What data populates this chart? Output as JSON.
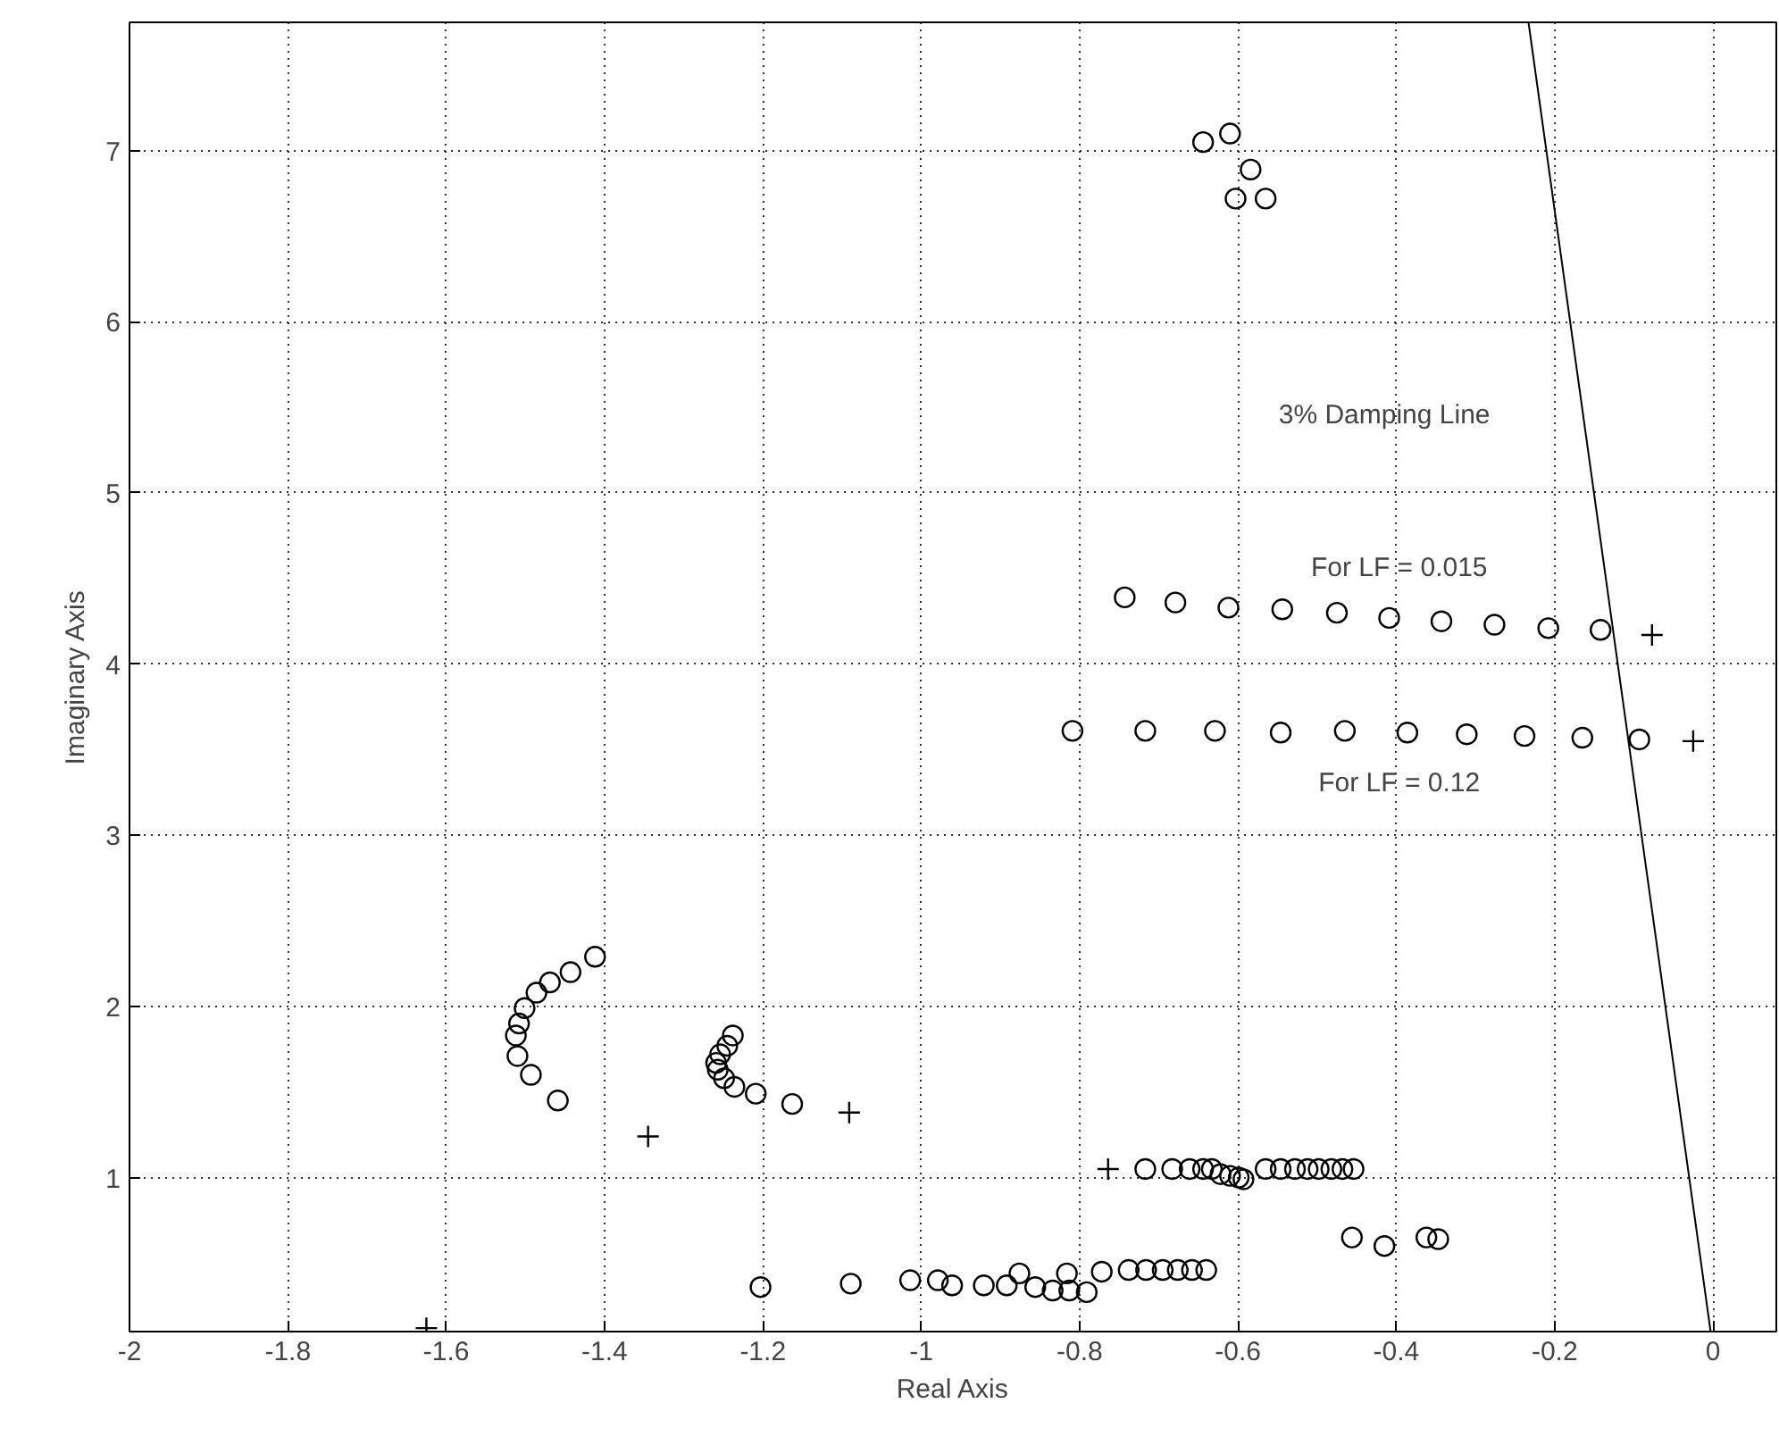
{
  "chart_data": {
    "type": "scatter",
    "xlabel": "Real Axis",
    "ylabel": "Imaginary Axis",
    "xlim": [
      -2,
      0.08
    ],
    "ylim": [
      0.1,
      7.75
    ],
    "xticks": [
      -2,
      -1.8,
      -1.6,
      -1.4,
      -1.2,
      -1,
      -0.8,
      -0.6,
      -0.4,
      -0.2,
      0
    ],
    "yticks": [
      1,
      2,
      3,
      4,
      5,
      6,
      7
    ],
    "grid": true,
    "series": [
      {
        "marker": "circle",
        "color": "#000000",
        "x": [
          -0.743,
          -0.679,
          -0.612,
          -0.544,
          -0.475,
          -0.409,
          -0.343,
          -0.276,
          -0.208,
          -0.142,
          -0.809,
          -0.717,
          -0.629,
          -0.546,
          -0.465,
          -0.386,
          -0.311,
          -0.238,
          -0.165,
          -0.093,
          -1.412,
          -1.443,
          -1.469,
          -1.486,
          -1.501,
          -1.508,
          -1.512,
          -1.51,
          -1.493,
          -1.459,
          -1.238,
          -1.245,
          -1.254,
          -1.259,
          -1.257,
          -1.249,
          -1.236,
          -1.209,
          -1.163,
          -0.717,
          -0.683,
          -0.661,
          -0.644,
          -0.633,
          -0.622,
          -0.61,
          -0.599,
          -0.593,
          -0.565,
          -0.546,
          -0.528,
          -0.512,
          -0.498,
          -0.482,
          -0.468,
          -0.454,
          -1.203,
          -1.089,
          -1.014,
          -0.979,
          -0.961,
          -0.921,
          -0.892,
          -0.876,
          -0.856,
          -0.834,
          -0.816,
          -0.813,
          -0.791,
          -0.772,
          -0.738,
          -0.716,
          -0.695,
          -0.676,
          -0.658,
          -0.64,
          -0.644,
          -0.61,
          -0.584,
          -0.603,
          -0.565,
          -0.456,
          -0.415,
          -0.362,
          -0.347
        ],
        "values": [
          4.39,
          4.36,
          4.33,
          4.32,
          4.3,
          4.27,
          4.25,
          4.23,
          4.21,
          4.2,
          3.61,
          3.61,
          3.61,
          3.6,
          3.61,
          3.6,
          3.59,
          3.58,
          3.57,
          3.56,
          2.29,
          2.2,
          2.14,
          2.08,
          1.99,
          1.9,
          1.83,
          1.71,
          1.6,
          1.45,
          1.83,
          1.77,
          1.72,
          1.67,
          1.63,
          1.58,
          1.53,
          1.49,
          1.43,
          1.05,
          1.05,
          1.05,
          1.05,
          1.05,
          1.02,
          1.01,
          1.0,
          0.99,
          1.05,
          1.05,
          1.05,
          1.05,
          1.05,
          1.05,
          1.05,
          1.05,
          0.36,
          0.38,
          0.4,
          0.4,
          0.37,
          0.37,
          0.37,
          0.44,
          0.36,
          0.34,
          0.44,
          0.34,
          0.33,
          0.45,
          0.46,
          0.46,
          0.46,
          0.46,
          0.46,
          0.46,
          7.05,
          7.1,
          6.89,
          6.72,
          6.72,
          0.65,
          0.6,
          0.65,
          0.64
        ]
      },
      {
        "marker": "cross",
        "color": "#000000",
        "x": [
          -0.077,
          -0.025,
          -1.345,
          -1.091,
          -0.764,
          -1.625
        ],
        "values": [
          4.17,
          3.55,
          1.24,
          1.38,
          1.05,
          0.12
        ]
      },
      {
        "type": "line",
        "line_style": "solid",
        "color": "#000000",
        "x": [
          -0.003,
          -0.233
        ],
        "values": [
          0.1,
          7.75
        ]
      }
    ],
    "annotations": [
      "3% Damping Line",
      "For LF = 0.015",
      "For LF = 0.12"
    ]
  }
}
